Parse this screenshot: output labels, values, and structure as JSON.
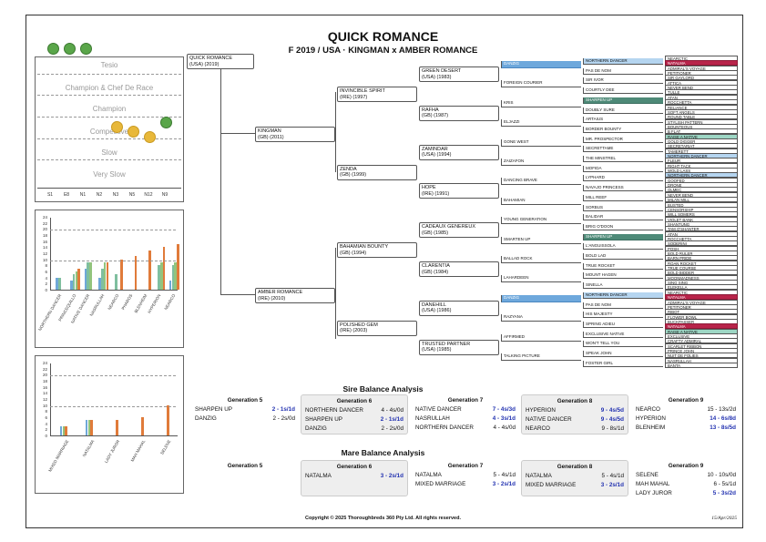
{
  "title": "QUICK ROMANCE",
  "subtitle": "F 2019 / USA · KINGMAN x AMBER ROMANCE",
  "colors": {
    "blue": "#6ea8dc",
    "teal": "#4e8a78",
    "light_blue": "#b5d5f0",
    "red": "#b8244a",
    "mint": "#9dd6c4",
    "bar_orange": "#e07b3a",
    "bar_blue": "#6fa8d8",
    "bar_teal": "#7fbf9f",
    "bar_green": "#93c47d"
  },
  "rating_panel": {
    "bands": [
      "Tesio",
      "Champion & Chef De Race",
      "Champion",
      "Competitive",
      "Slow",
      "Very Slow"
    ],
    "x_labels": [
      "S1",
      "E8",
      "N1",
      "N2",
      "N3",
      "N5",
      "N12",
      "N9"
    ],
    "top_dots": 3
  },
  "chart_data": [
    {
      "type": "bar",
      "categories": [
        "NORTHERN DANCER",
        "PRINCEQUILLO",
        "NATIVE DANCER",
        "NASRULLAH",
        "NEARCO",
        "PHAROS",
        "BLENHEIM",
        "HYPERION",
        "NEARCO"
      ],
      "series": [
        {
          "values": [
            4,
            3,
            7,
            4,
            0,
            0,
            0,
            0,
            3
          ]
        },
        {
          "values": [
            4,
            5,
            9,
            7,
            5,
            0,
            0,
            8,
            8
          ]
        },
        {
          "values": [
            0,
            6,
            9,
            9,
            0,
            0,
            0,
            9,
            9
          ]
        },
        {
          "values": [
            0,
            7,
            0,
            9,
            10,
            11,
            13,
            14,
            15
          ]
        }
      ],
      "ylim": [
        0,
        24
      ],
      "yticks": [
        "24",
        "22",
        "20",
        "18",
        "16",
        "14",
        "12",
        "10",
        "8",
        "6",
        "4",
        "2",
        "0"
      ]
    },
    {
      "type": "bar",
      "categories": [
        "MIXED MARRIAGE",
        "NATALMA",
        "LADY JUROR",
        "MAH MAHAL",
        "SELENE"
      ],
      "series": [
        {
          "values": [
            3,
            5,
            0,
            0,
            0
          ]
        },
        {
          "values": [
            3,
            5,
            0,
            0,
            0
          ]
        },
        {
          "values": [
            3,
            5,
            5,
            6,
            10
          ]
        }
      ],
      "ylim": [
        0,
        24
      ],
      "yticks": [
        "24",
        "22",
        "20",
        "18",
        "16",
        "14",
        "12",
        "10",
        "8",
        "6",
        "4",
        "2",
        "0"
      ]
    }
  ],
  "pedigree": {
    "subject": [
      "QUICK ROMANCE",
      "(USA) (2019)"
    ],
    "sire": [
      "KINGMAN",
      "(GB) (2011)"
    ],
    "dam": [
      "AMBER ROMANCE",
      "(IRE) (2010)"
    ],
    "gen2": [
      [
        "INVINCIBLE SPIRIT",
        "(IRE) (1997)"
      ],
      [
        "ZENDA",
        "(GB) (1999)"
      ],
      [
        "BAHAMIAN BOUNTY",
        "(GB) (1994)"
      ],
      [
        "POLISHED GEM",
        "(IRE) (2003)"
      ]
    ],
    "gen3": [
      [
        "GREEN DESERT",
        "(USA) (1983)"
      ],
      [
        "RAFHA",
        "(GB) (1987)"
      ],
      [
        "ZAMINDAR",
        "(USA) (1994)"
      ],
      [
        "HOPE",
        "(IRE) (1991)"
      ],
      [
        "CADEAUX GENEREUX",
        "(GB) (1985)"
      ],
      [
        "CLARENTIA",
        "(GB) (1984)"
      ],
      [
        "DANEHILL",
        "(USA) (1986)"
      ],
      [
        "TRUSTED PARTNER",
        "(USA) (1985)"
      ]
    ],
    "gen4": [
      "DANZIG",
      "FOREIGN COURIER",
      "KRIS",
      "ELJAZZI",
      "GONE WEST",
      "ZAIZAFON",
      "DANCING BRAVE",
      "BAHAMIAN",
      "YOUNG GENERATION",
      "SMARTEN UP",
      "BALLAD ROCK",
      "LAHARDEEN",
      "DANZIG",
      "RAZYANA",
      "AFFIRMED",
      "TALKING PICTURE"
    ],
    "gen5": [
      "NORTHERN DANCER",
      "PAS DE NOM",
      "SIR IVOR",
      "COURTLY DEE",
      "SHARPEN UP",
      "DOUBLY SURE",
      "ARTAIUS",
      "BORDER BOUNTY",
      "MR. PROSPECTOR",
      "SECRETTAME",
      "THE MINSTREL",
      "MOFIDA",
      "LYPHARD",
      "NAVAJO PRINCESS",
      "MILL REEF",
      "SORBUS",
      "BALIDAR",
      "BRIG O'DOON",
      "SHARPEN UP",
      "L'ANGUISSOLA",
      "BOLD LAD",
      "TRUE ROCKET",
      "MOUNT HAGEN",
      "SINELLA",
      "NORTHERN DANCER",
      "PAS DE NOM",
      "HIS MAJESTY",
      "SPRING ADIEU",
      "EXCLUSIVE NATIVE",
      "WON'T TELL YOU",
      "SPEAK JOHN",
      "FOSTER GIRL"
    ],
    "gen6": [
      "NEARCTIC",
      "NATALMA",
      "ADMIRAL'S VOYAGE",
      "PETITIONER",
      "SIR GAYLORD",
      "ATTICA",
      "NEVER BEND",
      "TULLE",
      "ATAN",
      "ROCCHETTA",
      "RELIANCE",
      "SOFT ANGELS",
      "ROUND TABLE",
      "STYLISH PATTERN",
      "BOUNTEOUS",
      "B FLAT",
      "RAISE A NATIVE",
      "GOLD DIGGER",
      "SECRETARIAT",
      "TAMERETT",
      "NORTHERN DANCER",
      "FLEUR",
      "RIGHT TACK",
      "WOLD LASS",
      "NORTHERN DANCER",
      "GOOFED",
      "DRONE",
      "OLMEC",
      "NEVER BEND",
      "MILAN MILL",
      "BUSTED",
      "CENSORSHIP",
      "WILL SOMERS",
      "VIOLET BANK",
      "SHANTUNG",
      "TAM O'SHANTER",
      "ATAN",
      "ROCCHETTA",
      "SODERINI",
      "POSH",
      "BOLD RULER",
      "BARN PRIDE",
      "ROAN ROCKET",
      "TRUE COURSE",
      "BOLD BIDDER",
      "MOONMADNESS",
      "SING SING",
      "ELEKELLA",
      "NEARCTIC",
      "NATALMA",
      "ADMIRAL'S VOYAGE",
      "PETITIONER",
      "RIBOT",
      "FLOWER BOWL",
      "BUCKPASSER",
      "NATALMA",
      "RAISE A NATIVE",
      "EXCLUSIVE",
      "CRAFTY ADMIRAL",
      "SCARLET RIBBON",
      "PRINCE JOHN",
      "NUIT DE FOLIES",
      "NASRULLAH",
      "BANTA"
    ]
  },
  "sire_balance": {
    "title": "Sire Balance Analysis",
    "columns": [
      {
        "head": "Generation 5",
        "rows": [
          [
            "SHARPEN UP",
            "2 - 1s/1d",
            true
          ],
          [
            "DANZIG",
            "2 - 2s/0d",
            false
          ]
        ]
      },
      {
        "head": "Generation 6",
        "rows": [
          [
            "NORTHERN DANCER",
            "4 - 4s/0d",
            false
          ],
          [
            "SHARPEN UP",
            "2 - 1s/1d",
            true
          ],
          [
            "DANZIG",
            "2 - 2s/0d",
            false
          ]
        ]
      },
      {
        "head": "Generation 7",
        "rows": [
          [
            "NATIVE DANCER",
            "7 - 4s/3d",
            true
          ],
          [
            "NASRULLAH",
            "4 - 3s/1d",
            true
          ],
          [
            "NORTHERN DANCER",
            "4 - 4s/0d",
            false
          ]
        ]
      },
      {
        "head": "Generation 8",
        "rows": [
          [
            "HYPERION",
            "9 - 4s/5d",
            true
          ],
          [
            "NATIVE DANCER",
            "9 - 4s/5d",
            true
          ],
          [
            "NEARCO",
            "9 - 8s/1d",
            false
          ]
        ]
      },
      {
        "head": "Generation 9",
        "rows": [
          [
            "NEARCO",
            "15 - 13s/2d",
            false
          ],
          [
            "HYPERION",
            "14 - 6s/8d",
            true
          ],
          [
            "BLENHEIM",
            "13 - 8s/5d",
            true
          ]
        ]
      }
    ]
  },
  "mare_balance": {
    "title": "Mare Balance Analysis",
    "columns": [
      {
        "head": "Generation 5",
        "rows": []
      },
      {
        "head": "Generation 6",
        "rows": [
          [
            "NATALMA",
            "3 - 2s/1d",
            true
          ]
        ]
      },
      {
        "head": "Generation 7",
        "rows": [
          [
            "NATALMA",
            "5 - 4s/1d",
            false
          ],
          [
            "MIXED MARRIAGE",
            "3 - 2s/1d",
            true
          ]
        ]
      },
      {
        "head": "Generation 8",
        "rows": [
          [
            "NATALMA",
            "5 - 4s/1d",
            false
          ],
          [
            "MIXED MARRIAGE",
            "3 - 2s/1d",
            true
          ]
        ]
      },
      {
        "head": "Generation 9",
        "rows": [
          [
            "SELENE",
            "10 - 10s/0d",
            false
          ],
          [
            "MAH MAHAL",
            "6 - 5s/1d",
            false
          ],
          [
            "LADY JUROR",
            "5 - 3s/2d",
            true
          ]
        ]
      }
    ]
  },
  "footer": "Copyright © 2025 Thoroughbreds 360 Pty Ltd. All rights reserved.",
  "date": "15/Apr/2025"
}
